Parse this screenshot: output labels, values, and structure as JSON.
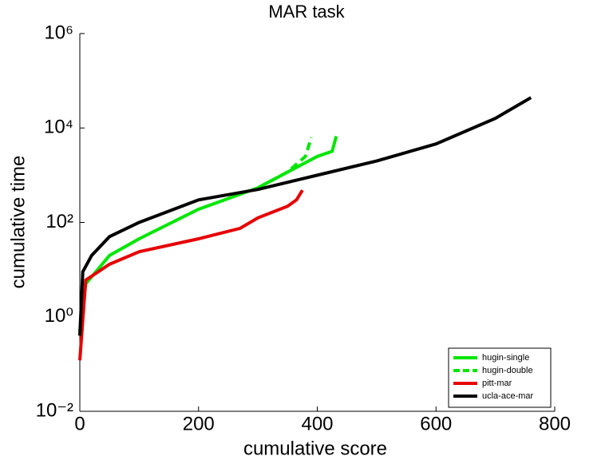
{
  "chart_data": {
    "type": "line",
    "title": "MAR task",
    "xlabel": "cumulative score",
    "ylabel": "cumulative time",
    "xlim": [
      0,
      800
    ],
    "xticks": [
      0,
      200,
      400,
      600,
      800
    ],
    "ylim": [
      0.01,
      1000000
    ],
    "ylog": true,
    "yticks": [
      {
        "value": 0.01,
        "label": "10⁻²"
      },
      {
        "value": 1,
        "label": "10⁰"
      },
      {
        "value": 100,
        "label": "10²"
      },
      {
        "value": 10000,
        "label": "10⁴"
      },
      {
        "value": 1000000,
        "label": "10⁶"
      }
    ],
    "grid": false,
    "legend": "lower right",
    "series": [
      {
        "name": "hugin-single",
        "color": "#00e600",
        "dash": false,
        "x": [
          0,
          10,
          50,
          100,
          200,
          300,
          400,
          425,
          432
        ],
        "values": [
          0.5,
          5,
          20,
          45,
          190,
          540,
          2500,
          3200,
          6700
        ]
      },
      {
        "name": "hugin-double",
        "color": "#00e600",
        "dash": true,
        "x": [
          300,
          350,
          380,
          390
        ],
        "values": [
          540,
          1170,
          2500,
          6300
        ]
      },
      {
        "name": "pitt-mar",
        "color": "#e60000",
        "dash": false,
        "x": [
          0,
          10,
          50,
          100,
          200,
          270,
          300,
          350,
          365,
          375
        ],
        "values": [
          0.12,
          6,
          13,
          24,
          45,
          75,
          125,
          220,
          300,
          480
        ]
      },
      {
        "name": "ucla-ace-mar",
        "color": "#000000",
        "dash": false,
        "x": [
          0,
          5,
          20,
          50,
          100,
          200,
          300,
          400,
          500,
          600,
          700,
          760
        ],
        "values": [
          0.4,
          9,
          20,
          50,
          100,
          300,
          500,
          1000,
          2000,
          4600,
          16000,
          44000
        ]
      }
    ]
  }
}
